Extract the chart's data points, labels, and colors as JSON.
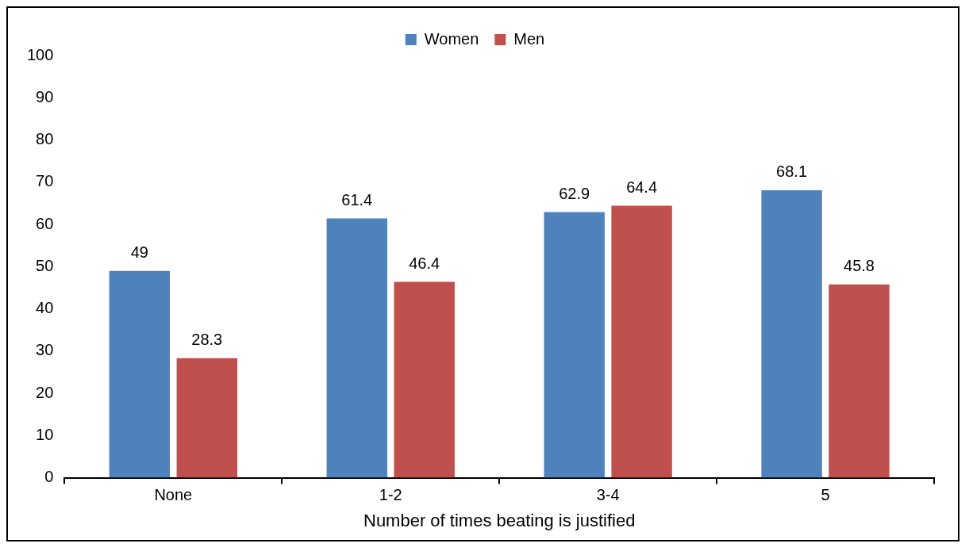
{
  "chart_data": {
    "type": "bar",
    "xlabel": "Number of times beating is justified",
    "categories": [
      "None",
      "1-2",
      "3-4",
      "5"
    ],
    "series": [
      {
        "name": "Women",
        "color": "#4f81bd",
        "values": [
          49,
          61.4,
          62.9,
          68.1
        ]
      },
      {
        "name": "Men",
        "color": "#c0504d",
        "values": [
          28.3,
          46.4,
          64.4,
          45.8
        ]
      }
    ],
    "ylim": [
      0,
      100
    ],
    "yticks": [
      0,
      10,
      20,
      30,
      40,
      50,
      60,
      70,
      80,
      90,
      100
    ],
    "grid": false,
    "legend": "top",
    "data_labels": true
  }
}
